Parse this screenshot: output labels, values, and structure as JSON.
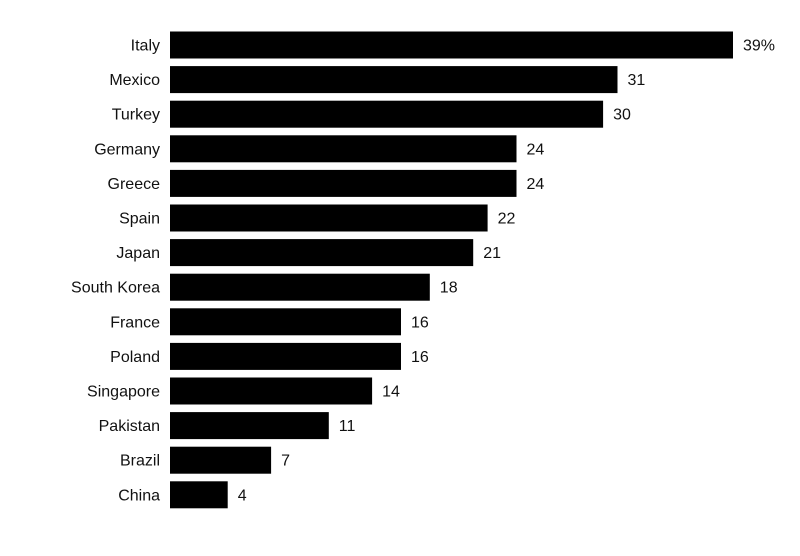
{
  "chart_data": {
    "type": "bar",
    "orientation": "horizontal",
    "categories": [
      "Italy",
      "Mexico",
      "Turkey",
      "Germany",
      "Greece",
      "Spain",
      "Japan",
      "South Korea",
      "France",
      "Poland",
      "Singapore",
      "Pakistan",
      "Brazil",
      "China"
    ],
    "values": [
      39,
      31,
      30,
      24,
      24,
      22,
      21,
      18,
      16,
      16,
      14,
      11,
      7,
      4
    ],
    "value_labels": [
      "39%",
      "31",
      "30",
      "24",
      "24",
      "22",
      "21",
      "18",
      "16",
      "16",
      "14",
      "11",
      "7",
      "4"
    ],
    "xlim": [
      0,
      39
    ],
    "grid": false,
    "bar_color": "#000000",
    "text_color": "#111111"
  }
}
